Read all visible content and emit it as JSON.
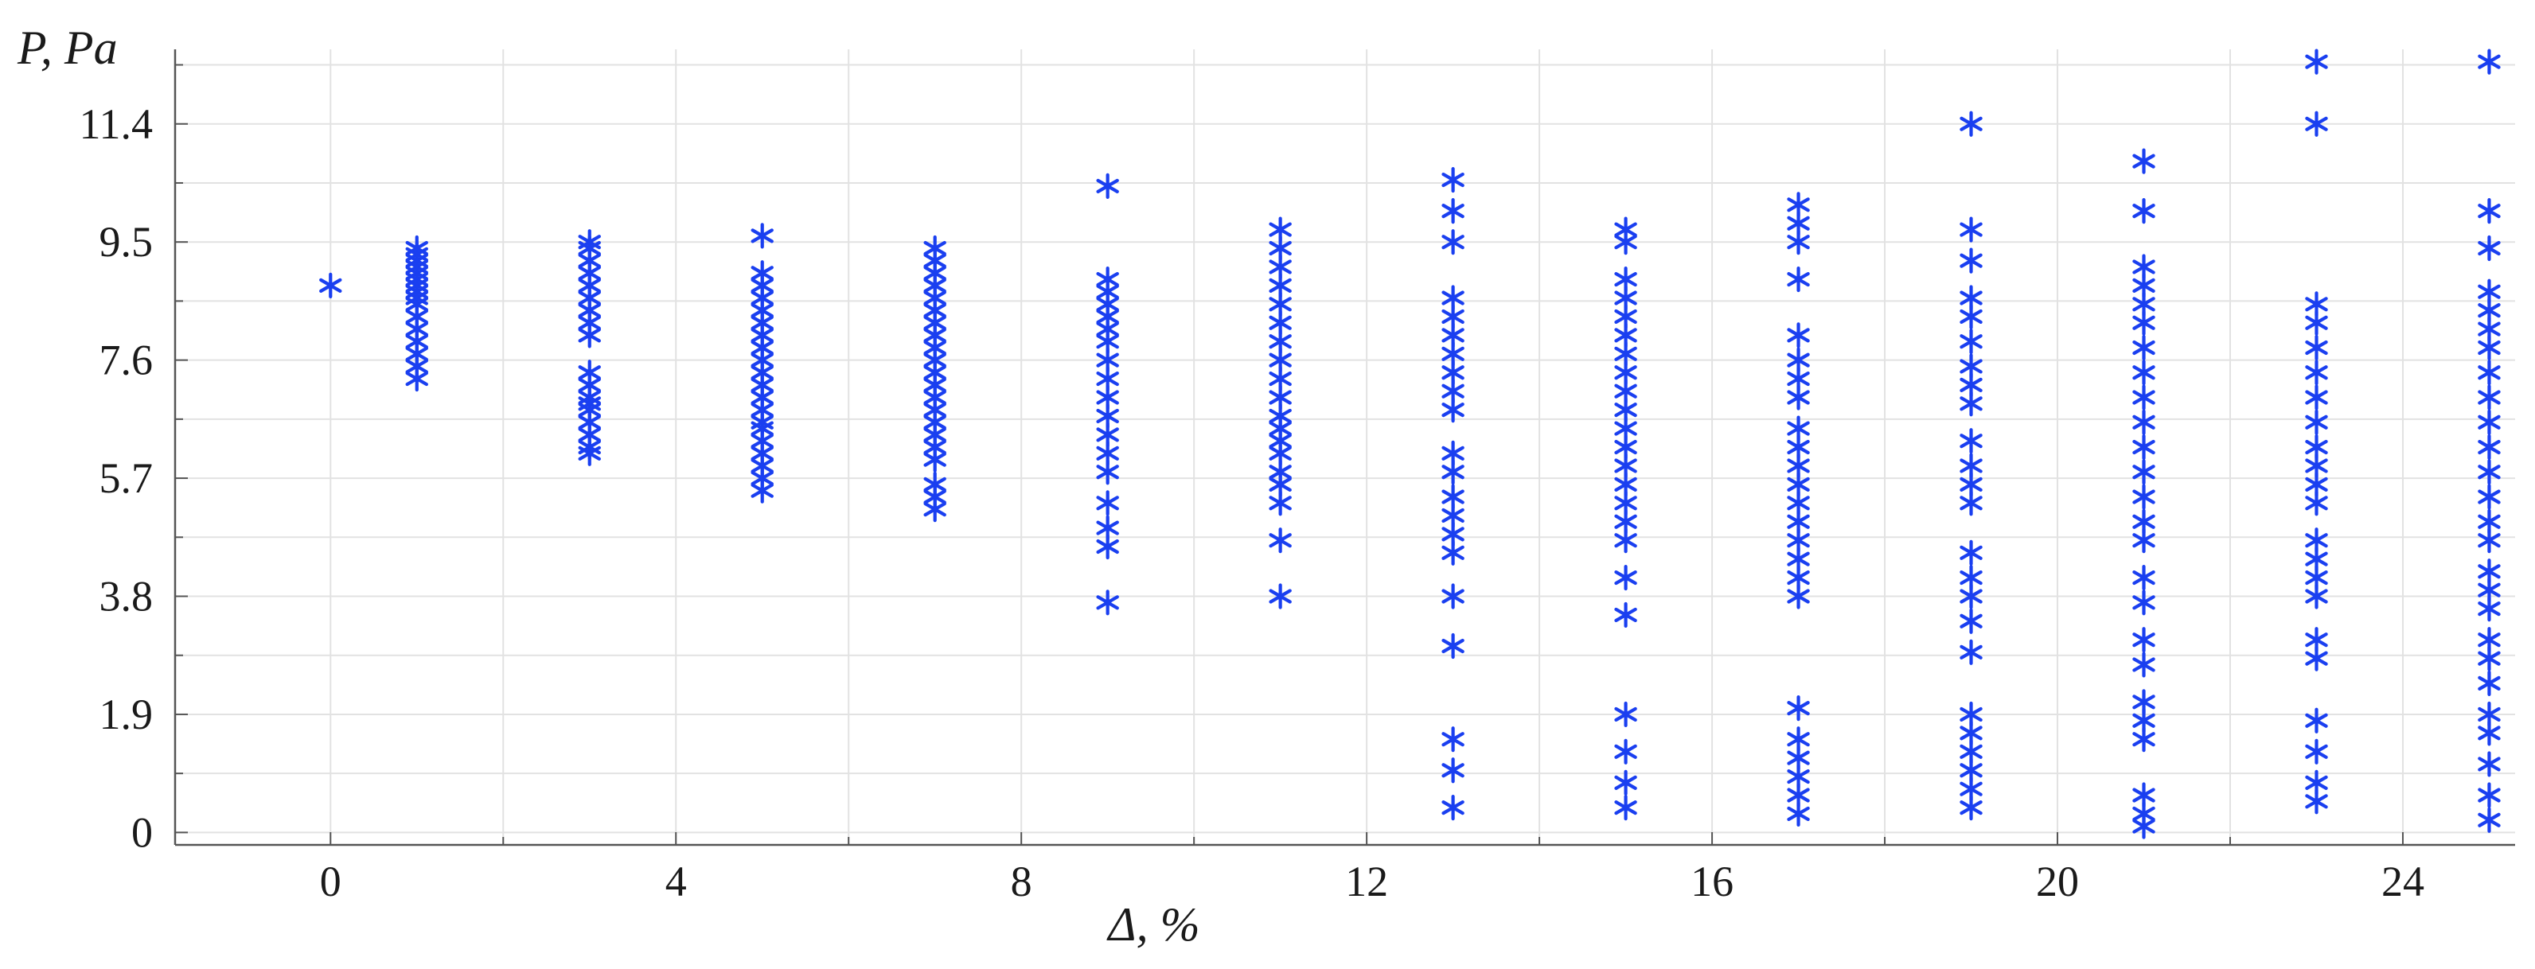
{
  "chart_data": {
    "type": "scatter",
    "xlabel": "Δ, %",
    "ylabel": "P, Pa",
    "xlim": [
      -1.8,
      25.3
    ],
    "ylim": [
      -0.2,
      12.6
    ],
    "xticks": [
      0,
      4,
      8,
      12,
      16,
      20,
      24
    ],
    "xminor": [
      2,
      6,
      10,
      14,
      18,
      22
    ],
    "yticks": [
      0,
      1.9,
      3.8,
      5.7,
      7.6,
      9.5,
      11.4
    ],
    "yminor": [
      0.95,
      2.85,
      4.75,
      6.65,
      8.55,
      10.45,
      12.35
    ],
    "grid": true,
    "marker": "asterisk",
    "color": "#1a3ff0",
    "series": [
      {
        "x": 0,
        "y": [
          8.8
        ]
      },
      {
        "x": 1,
        "y": [
          7.3,
          7.5,
          7.7,
          7.9,
          8.1,
          8.3,
          8.5,
          8.6,
          8.7,
          8.8,
          8.9,
          9.0,
          9.1,
          9.2,
          9.3,
          9.4
        ]
      },
      {
        "x": 3,
        "y": [
          6.1,
          6.2,
          6.4,
          6.6,
          6.8,
          6.9,
          7.0,
          7.2,
          7.4,
          8.0,
          8.2,
          8.4,
          8.6,
          8.8,
          9.0,
          9.2,
          9.4,
          9.5
        ]
      },
      {
        "x": 5,
        "y": [
          5.5,
          5.7,
          5.9,
          6.1,
          6.3,
          6.5,
          6.6,
          6.8,
          7.0,
          7.2,
          7.4,
          7.6,
          7.8,
          8.0,
          8.2,
          8.4,
          8.6,
          8.8,
          9.0,
          9.6
        ]
      },
      {
        "x": 7,
        "y": [
          5.2,
          5.4,
          5.6,
          6.0,
          6.2,
          6.4,
          6.6,
          6.8,
          7.0,
          7.2,
          7.4,
          7.6,
          7.8,
          8.0,
          8.2,
          8.4,
          8.6,
          8.8,
          9.0,
          9.2,
          9.4
        ]
      },
      {
        "x": 9,
        "y": [
          3.7,
          4.6,
          4.9,
          5.3,
          5.8,
          6.1,
          6.4,
          6.7,
          7.0,
          7.3,
          7.6,
          7.9,
          8.1,
          8.3,
          8.5,
          8.7,
          8.9,
          10.4
        ]
      },
      {
        "x": 11,
        "y": [
          3.8,
          4.7,
          5.3,
          5.6,
          5.8,
          6.1,
          6.3,
          6.5,
          6.7,
          7.0,
          7.3,
          7.6,
          7.9,
          8.2,
          8.5,
          8.8,
          9.1,
          9.4,
          9.7
        ]
      },
      {
        "x": 13,
        "y": [
          0.4,
          1.0,
          1.5,
          3.0,
          3.8,
          4.5,
          4.8,
          5.1,
          5.4,
          5.8,
          6.1,
          6.8,
          7.1,
          7.4,
          7.7,
          8.0,
          8.3,
          8.6,
          9.5,
          10.0,
          10.5
        ]
      },
      {
        "x": 15,
        "y": [
          0.4,
          0.8,
          1.3,
          1.9,
          3.5,
          4.1,
          4.7,
          5.0,
          5.3,
          5.6,
          5.9,
          6.2,
          6.5,
          6.8,
          7.1,
          7.4,
          7.7,
          8.0,
          8.3,
          8.6,
          8.9,
          9.5,
          9.7
        ]
      },
      {
        "x": 17,
        "y": [
          0.3,
          0.6,
          0.9,
          1.2,
          1.5,
          2.0,
          3.8,
          4.1,
          4.4,
          4.7,
          5.0,
          5.3,
          5.6,
          5.9,
          6.2,
          6.5,
          7.0,
          7.3,
          7.6,
          8.0,
          8.9,
          9.5,
          9.8,
          10.1
        ]
      },
      {
        "x": 19,
        "y": [
          0.4,
          0.7,
          1.0,
          1.3,
          1.6,
          1.9,
          2.9,
          3.4,
          3.8,
          4.1,
          4.5,
          5.3,
          5.6,
          5.9,
          6.3,
          6.9,
          7.2,
          7.5,
          7.9,
          8.3,
          8.6,
          9.2,
          9.7,
          11.4
        ]
      },
      {
        "x": 21,
        "y": [
          0.1,
          0.3,
          0.6,
          1.5,
          1.8,
          2.1,
          2.7,
          3.1,
          3.7,
          4.1,
          4.7,
          5.0,
          5.4,
          5.8,
          6.2,
          6.6,
          7.0,
          7.4,
          7.8,
          8.2,
          8.5,
          8.8,
          9.1,
          10.0,
          10.8
        ]
      },
      {
        "x": 23,
        "y": [
          0.5,
          0.8,
          1.3,
          1.8,
          2.8,
          3.1,
          3.8,
          4.1,
          4.4,
          4.7,
          5.3,
          5.6,
          5.9,
          6.2,
          6.6,
          7.0,
          7.4,
          7.8,
          8.2,
          8.5,
          11.4,
          12.4
        ]
      },
      {
        "x": 25,
        "y": [
          0.2,
          0.6,
          1.1,
          1.6,
          1.9,
          2.4,
          2.8,
          3.1,
          3.6,
          3.9,
          4.2,
          4.7,
          5.0,
          5.4,
          5.8,
          6.2,
          6.6,
          7.0,
          7.4,
          7.8,
          8.1,
          8.4,
          8.7,
          9.4,
          10.0,
          12.4
        ]
      }
    ]
  }
}
